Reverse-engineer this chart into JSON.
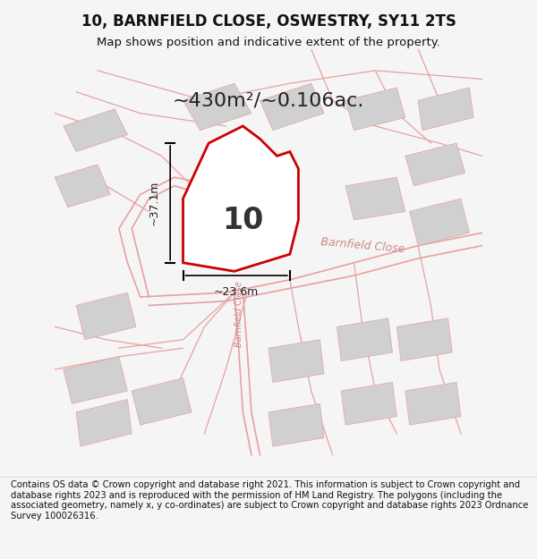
{
  "title": "10, BARNFIELD CLOSE, OSWESTRY, SY11 2TS",
  "subtitle": "Map shows position and indicative extent of the property.",
  "area_text": "~430m²/~0.106ac.",
  "number_label": "10",
  "dim_vertical": "~37.1m",
  "dim_horizontal": "~23.6m",
  "road_label": "Barnfield Close",
  "road_label_rotated": "Barnfield Close",
  "footer": "Contains OS data © Crown copyright and database right 2021. This information is subject to Crown copyright and database rights 2023 and is reproduced with the permission of HM Land Registry. The polygons (including the associated geometry, namely x, y co-ordinates) are subject to Crown copyright and database rights 2023 Ordnance Survey 100026316.",
  "bg_color": "#f5f5f5",
  "map_bg": "#ffffff",
  "plot_color": "#cc0000",
  "plot_fill": "#ffffff",
  "building_color": "#d0d0d0",
  "road_line_color": "#e8a0a0",
  "title_color": "#111111",
  "footer_color": "#111111"
}
